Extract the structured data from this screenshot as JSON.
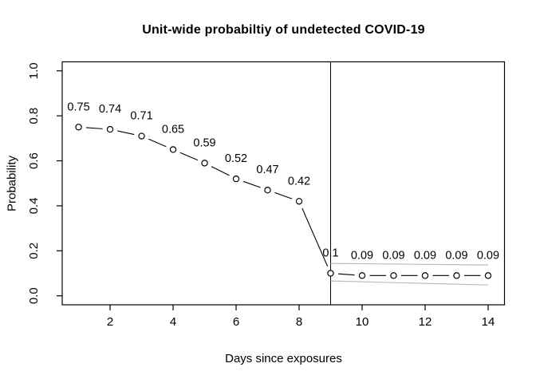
{
  "title": "Unit-wide probabiltiy of undetected COVID-19",
  "axes": {
    "x_label": "Days since exposures",
    "y_label": "Probability"
  },
  "chart_data": {
    "type": "line",
    "title": "Unit-wide probabiltiy of undetected COVID-19",
    "xlabel": "Days since exposures",
    "ylabel": "Probability",
    "x": [
      1,
      2,
      3,
      4,
      5,
      6,
      7,
      8,
      9,
      10,
      11,
      12,
      13,
      14
    ],
    "values": [
      0.75,
      0.74,
      0.71,
      0.65,
      0.59,
      0.52,
      0.47,
      0.42,
      0.1,
      0.09,
      0.09,
      0.09,
      0.09,
      0.09
    ],
    "point_labels": [
      "0.75",
      "0.74",
      "0.71",
      "0.65",
      "0.59",
      "0.52",
      "0.47",
      "0.42",
      "0.1",
      "0.09",
      "0.09",
      "0.09",
      "0.09",
      "0.09"
    ],
    "x_ticks": [
      2,
      4,
      6,
      8,
      10,
      12,
      14
    ],
    "x_tick_labels": [
      "2",
      "4",
      "6",
      "8",
      "10",
      "12",
      "14"
    ],
    "y_ticks": [
      0.0,
      0.2,
      0.4,
      0.6,
      0.8,
      1.0
    ],
    "y_tick_labels": [
      "0.0",
      "0.2",
      "0.4",
      "0.6",
      "0.8",
      "1.0"
    ],
    "xlim": [
      0.48,
      14.52
    ],
    "ylim": [
      -0.04,
      1.04
    ],
    "grid": false,
    "legend": null,
    "vline_x": 9,
    "confidence_band": {
      "x": [
        9,
        14
      ],
      "upper": [
        0.144,
        0.137
      ],
      "lower": [
        0.066,
        0.048
      ]
    },
    "style": {
      "point_shape": "open-circle",
      "line_color": "#000000",
      "point_fill": "#ffffff",
      "band_color": "#bbbbbb",
      "axis_color": "#000000",
      "background": "#ffffff"
    }
  }
}
